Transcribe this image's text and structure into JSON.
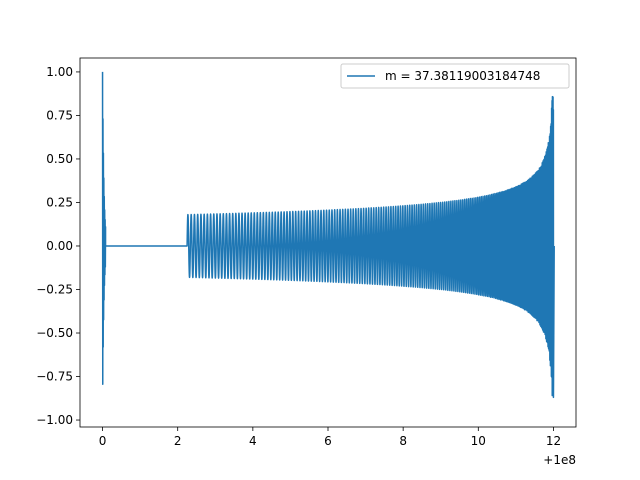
{
  "chart_data": {
    "type": "line",
    "title": "",
    "xlabel": "",
    "ylabel": "",
    "x_offset_label": "+1e8",
    "xlim": [
      -0.6,
      12.6
    ],
    "ylim": [
      -1.04,
      1.08
    ],
    "xticks": [
      {
        "value": 0,
        "label": "0"
      },
      {
        "value": 2,
        "label": "2"
      },
      {
        "value": 4,
        "label": "4"
      },
      {
        "value": 6,
        "label": "6"
      },
      {
        "value": 8,
        "label": "8"
      },
      {
        "value": 10,
        "label": "10"
      },
      {
        "value": 12,
        "label": "12"
      }
    ],
    "yticks": [
      {
        "value": -1.0,
        "label": "−1.00"
      },
      {
        "value": -0.75,
        "label": "−0.75"
      },
      {
        "value": -0.5,
        "label": "−0.50"
      },
      {
        "value": -0.25,
        "label": "−0.25"
      },
      {
        "value": 0.0,
        "label": "0.00"
      },
      {
        "value": 0.25,
        "label": "0.25"
      },
      {
        "value": 0.5,
        "label": "0.50"
      },
      {
        "value": 0.75,
        "label": "0.75"
      },
      {
        "value": 1.0,
        "label": "1.00"
      }
    ],
    "grid": false,
    "legend_position": "top-right",
    "series": [
      {
        "name": "m = 37.38119003184748",
        "color": "#1f77b4",
        "segments": [
          {
            "kind": "burst",
            "x": [
              0.0,
              0.08
            ],
            "max": 1.0,
            "min": -0.93
          },
          {
            "kind": "flat",
            "x": [
              0.08,
              2.25
            ],
            "value": 0.0
          },
          {
            "kind": "chirp",
            "x": [
              2.25,
              12.0
            ],
            "amplitude_start": 0.18,
            "amplitude_peak": 0.86,
            "amplitude_min": -0.87,
            "cycles": 180
          }
        ]
      }
    ]
  }
}
